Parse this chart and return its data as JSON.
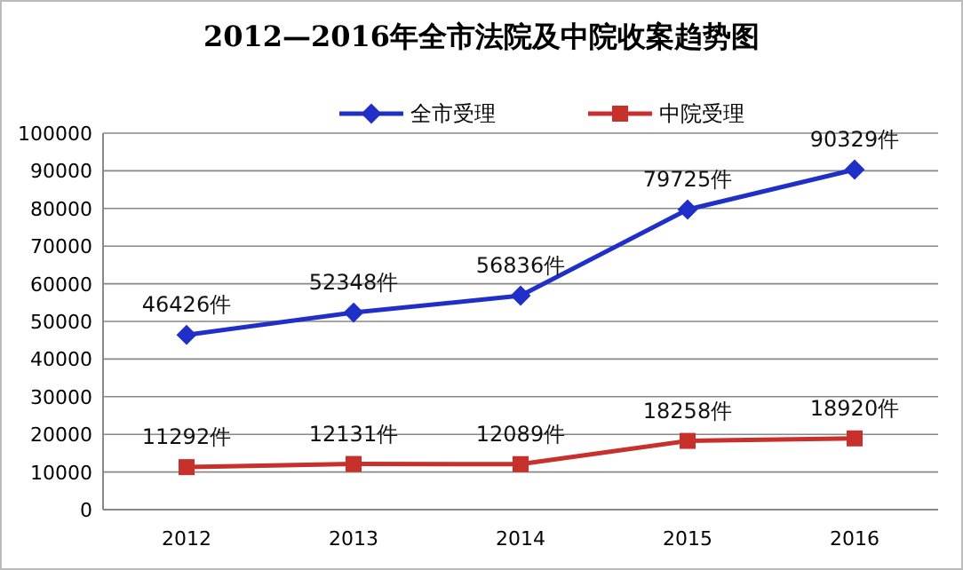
{
  "chart_data": {
    "type": "line",
    "title": "2012—2016年全市法院及中院收案趋势图",
    "categories": [
      "2012",
      "2013",
      "2014",
      "2015",
      "2016"
    ],
    "series": [
      {
        "name": "全市受理",
        "color": "#1f2fc8",
        "marker": "diamond",
        "values": [
          46426,
          52348,
          56836,
          79725,
          90329
        ],
        "value_labels": [
          "46426件",
          "52348件",
          "56836件",
          "79725件",
          "90329件"
        ]
      },
      {
        "name": "中院受理",
        "color": "#c8302c",
        "marker": "square",
        "values": [
          11292,
          12131,
          12089,
          18258,
          18920
        ],
        "value_labels": [
          "11292件",
          "12131件",
          "12089件",
          "18258件",
          "18920件"
        ]
      }
    ],
    "ylim": [
      0,
      100000
    ],
    "yticks": [
      0,
      10000,
      20000,
      30000,
      40000,
      50000,
      60000,
      70000,
      80000,
      90000,
      100000
    ],
    "grid": "y",
    "legend": "top",
    "line_style": "solid"
  }
}
